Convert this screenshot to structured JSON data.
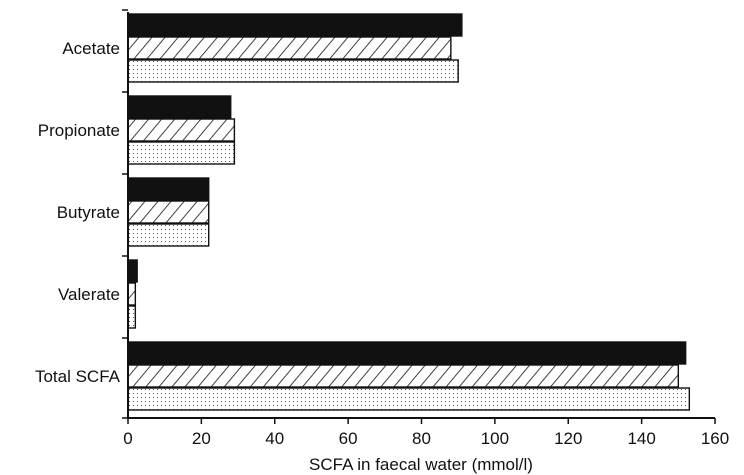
{
  "chart_data": {
    "type": "bar",
    "orientation": "horizontal",
    "categories": [
      "Acetate",
      "Propionate",
      "Butyrate",
      "Valerate",
      "Total SCFA"
    ],
    "series": [
      {
        "fill": "solid-black",
        "values": [
          91,
          28,
          22,
          2.5,
          152
        ]
      },
      {
        "fill": "diagonal-hatch",
        "values": [
          88,
          29,
          22,
          2,
          150
        ]
      },
      {
        "fill": "dotted",
        "values": [
          90,
          29,
          22,
          2,
          153
        ]
      }
    ],
    "xlabel": "SCFA in faecal water (mmol/l)",
    "xlim": [
      0,
      160
    ],
    "xticks": [
      "0",
      "20",
      "40",
      "60",
      "80",
      "100",
      "120",
      "140",
      "160"
    ],
    "grid": false,
    "legend": "none"
  }
}
